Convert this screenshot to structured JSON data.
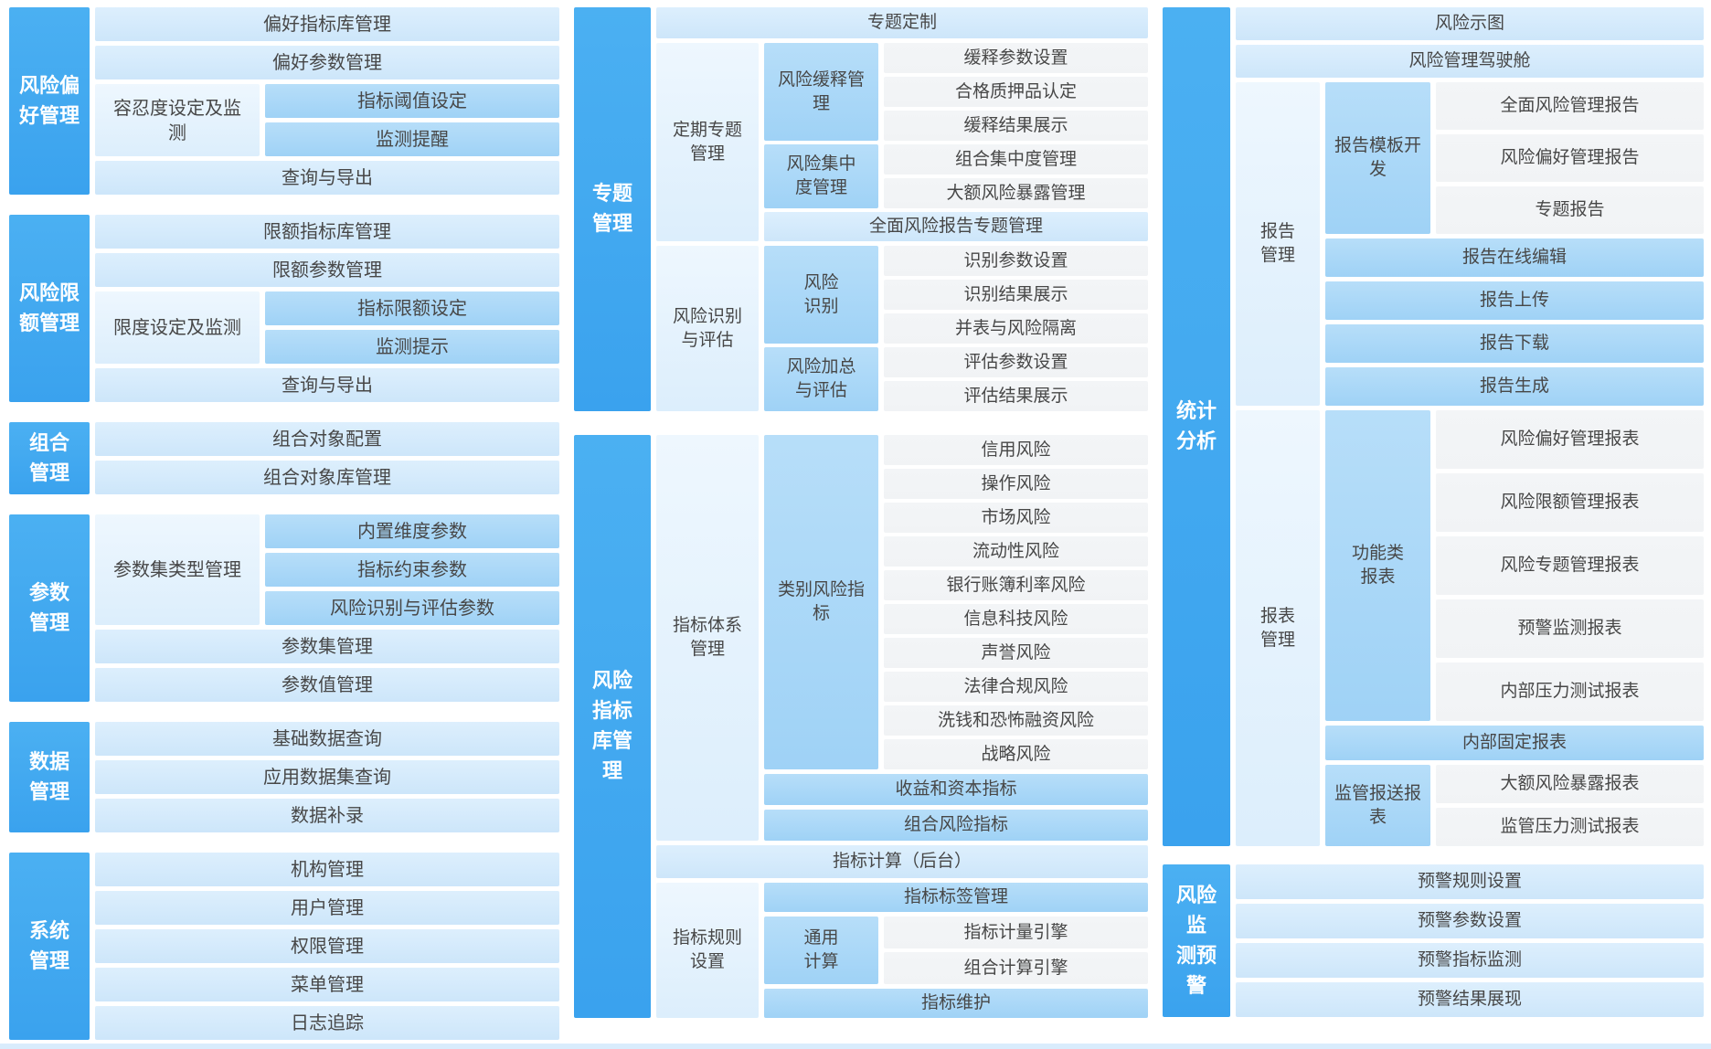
{
  "colors": {
    "section_bar": "#41a9f0",
    "medium_tile": "#aad7f8",
    "light_tile": "#d7ebfb",
    "paler_tile": "#e9f4fe",
    "leaf_tile": "#f4f5f7",
    "bar_text": "#ffffff",
    "tile_text": "#474747"
  },
  "left": {
    "risk_preference": {
      "label": "风险偏\n好管理",
      "row1": "偏好指标库管理",
      "row2": "偏好参数管理",
      "group_left": "容忍度设定及监测",
      "sub1": "指标阈值设定",
      "sub2": "监测提醒",
      "row3": "查询与导出"
    },
    "risk_limit": {
      "label": "风险限\n额管理",
      "row1": "限额指标库管理",
      "row2": "限额参数管理",
      "group_left": "限度设定及监测",
      "sub1": "指标限额设定",
      "sub2": "监测提示",
      "row3": "查询与导出"
    },
    "portfolio": {
      "label": "组合\n管理",
      "row1": "组合对象配置",
      "row2": "组合对象库管理"
    },
    "parameter": {
      "label": "参数\n管理",
      "group_left": "参数集类型管理",
      "sub1": "内置维度参数",
      "sub2": "指标约束参数",
      "sub3": "风险识别与评估参数",
      "row1": "参数集管理",
      "row2": "参数值管理"
    },
    "data": {
      "label": "数据\n管理",
      "row1": "基础数据查询",
      "row2": "应用数据集查询",
      "row3": "数据补录"
    },
    "system": {
      "label": "系统\n管理",
      "row1": "机构管理",
      "row2": "用户管理",
      "row3": "权限管理",
      "row4": "菜单管理",
      "row5": "日志追踪"
    }
  },
  "middle": {
    "topic": {
      "label": "专题\n管理",
      "row_top": "专题定制",
      "periodic": {
        "label": "定期专题管理",
        "mitigation": {
          "label": "风险缓释管理",
          "leaves": [
            "缓释参数设置",
            "合格质押品认定",
            "缓释结果展示"
          ]
        },
        "concentration": {
          "label": "风险集中度管理",
          "leaves": [
            "组合集中度管理",
            "大额风险暴露管理"
          ]
        },
        "row_bottom": "全面风险报告专题管理"
      },
      "identify": {
        "label": "风险识别与评估",
        "recognition": {
          "label": "风险识别",
          "leaves": [
            "识别参数设置",
            "识别结果展示",
            "并表与风险隔离"
          ]
        },
        "aggregation": {
          "label": "风险加总与评估",
          "leaves": [
            "评估参数设置",
            "评估结果展示"
          ]
        }
      }
    },
    "indicator_lib": {
      "label": "风险\n指标\n库管\n理",
      "system": {
        "label": "指标体系管理",
        "category": {
          "label": "类别风险指标",
          "leaves": [
            "信用风险",
            "操作风险",
            "市场风险",
            "流动性风险",
            "银行账簿利率风险",
            "信息科技风险",
            "声誉风险",
            "法律合规风险",
            "洗钱和恐怖融资风险",
            "战略风险"
          ]
        },
        "row1": "收益和资本指标",
        "row2": "组合风险指标"
      },
      "row_calc": "指标计算（后台）",
      "rules": {
        "label": "指标规则设置",
        "row1": "指标标签管理",
        "general": {
          "label": "通用计算",
          "leaves": [
            "指标计量引擎",
            "组合计算引擎"
          ]
        },
        "row2": "指标维护"
      }
    }
  },
  "right": {
    "stats": {
      "label": "统计\n分析",
      "row1": "风险示图",
      "row2": "风险管理驾驶舱",
      "report": {
        "label": "报告管理",
        "template": {
          "label": "报告模板开发",
          "leaves": [
            "全面风险管理报告",
            "风险偏好管理报告",
            "专题报告"
          ]
        },
        "rows": [
          "报告在线编辑",
          "报告上传",
          "报告下载",
          "报告生成"
        ]
      },
      "sheet": {
        "label": "报表管理",
        "functional": {
          "label": "功能类报表",
          "leaves": [
            "风险偏好管理报表",
            "风险限额管理报表",
            "风险专题管理报表",
            "预警监测报表",
            "内部压力测试报表"
          ]
        },
        "row_fixed": "内部固定报表",
        "regulatory": {
          "label": "监管报送报表",
          "leaves": [
            "大额风险暴露报表",
            "监管压力测试报表"
          ]
        }
      }
    },
    "warning": {
      "label": "风险监\n测预警",
      "rows": [
        "预警规则设置",
        "预警参数设置",
        "预警指标监测",
        "预警结果展现"
      ]
    }
  }
}
